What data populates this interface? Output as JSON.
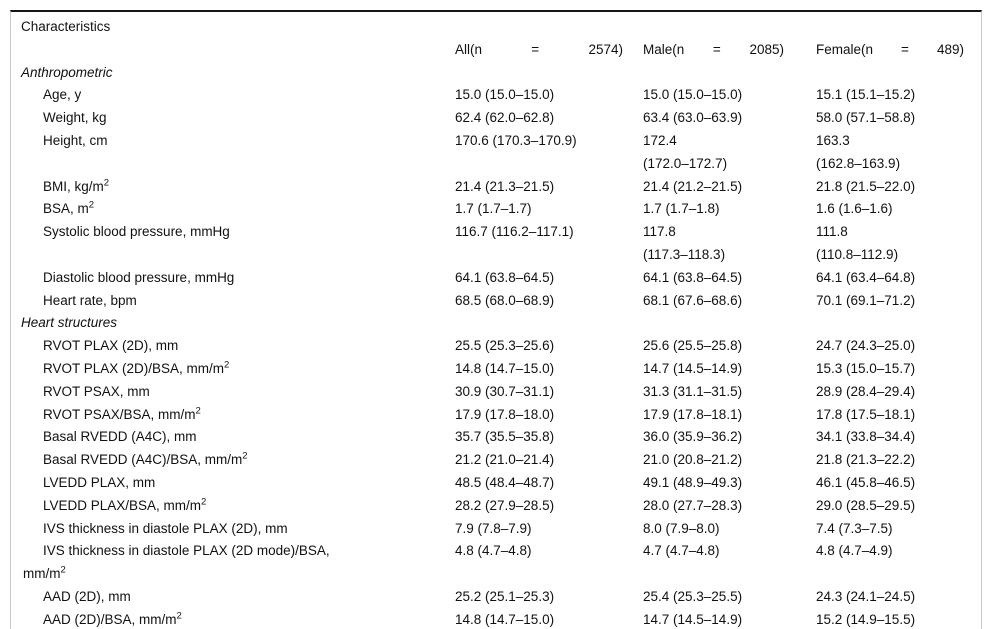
{
  "colors": {
    "background": "#ffffff",
    "rule_dark": "#161616",
    "rule_light": "#c9c9c9",
    "text": "#111111"
  },
  "table": {
    "header": {
      "characteristics": "Characteristics",
      "all": [
        "All(n",
        "=",
        "2574)"
      ],
      "male": [
        "Male(n",
        "=",
        "2085)"
      ],
      "female": [
        "Female(n",
        "=",
        "489)"
      ]
    },
    "sections": [
      {
        "title": "Anthropometric",
        "rows": [
          {
            "label": "Age, y",
            "all": "15.0 (15.0–15.0)",
            "male": "15.0 (15.0–15.0)",
            "female": "15.1 (15.1–15.2)"
          },
          {
            "label": "Weight, kg",
            "all": "62.4 (62.0–62.8)",
            "male": "63.4 (63.0–63.9)",
            "female": "58.0 (57.1–58.8)"
          },
          {
            "label": "Height, cm",
            "all": "170.6 (170.3–170.9)",
            "male": "172.4\n(172.0–172.7)",
            "female": "163.3\n(162.8–163.9)"
          },
          {
            "label": "BMI, kg/m^2",
            "all": "21.4 (21.3–21.5)",
            "male": "21.4 (21.2–21.5)",
            "female": "21.8 (21.5–22.0)"
          },
          {
            "label": "BSA, m^2",
            "all": "1.7 (1.7–1.7)",
            "male": "1.7 (1.7–1.8)",
            "female": "1.6 (1.6–1.6)"
          },
          {
            "label": "Systolic blood pressure, mmHg",
            "all": "116.7 (116.2–117.1)",
            "male": "117.8\n(117.3–118.3)",
            "female": "111.8\n(110.8–112.9)"
          },
          {
            "label": "Diastolic blood pressure, mmHg",
            "all": "64.1 (63.8–64.5)",
            "male": "64.1 (63.8–64.5)",
            "female": "64.1 (63.4–64.8)"
          },
          {
            "label": "Heart rate, bpm",
            "all": "68.5 (68.0–68.9)",
            "male": "68.1 (67.6–68.6)",
            "female": "70.1 (69.1–71.2)"
          }
        ]
      },
      {
        "title": "Heart structures",
        "rows": [
          {
            "label": "RVOT PLAX (2D), mm",
            "all": "25.5 (25.3–25.6)",
            "male": "25.6 (25.5–25.8)",
            "female": "24.7 (24.3–25.0)"
          },
          {
            "label": "RVOT PLAX (2D)/BSA, mm/m^2",
            "all": "14.8 (14.7–15.0)",
            "male": "14.7 (14.5–14.9)",
            "female": "15.3 (15.0–15.7)"
          },
          {
            "label": "RVOT PSAX, mm",
            "all": "30.9 (30.7–31.1)",
            "male": "31.3 (31.1–31.5)",
            "female": "28.9 (28.4–29.4)"
          },
          {
            "label": "RVOT PSAX/BSA, mm/m^2",
            "all": "17.9 (17.8–18.0)",
            "male": "17.9 (17.8–18.1)",
            "female": "17.8 (17.5–18.1)"
          },
          {
            "label": "Basal RVEDD (A4C), mm",
            "all": "35.7 (35.5–35.8)",
            "male": "36.0 (35.9–36.2)",
            "female": "34.1 (33.8–34.4)"
          },
          {
            "label": "Basal RVEDD (A4C)/BSA, mm/m^2",
            "all": "21.2 (21.0–21.4)",
            "male": "21.0 (20.8–21.2)",
            "female": "21.8 (21.3–22.2)"
          },
          {
            "label": "LVEDD PLAX, mm",
            "all": "48.5 (48.4–48.7)",
            "male": "49.1 (48.9–49.3)",
            "female": "46.1 (45.8–46.5)"
          },
          {
            "label": "LVEDD PLAX/BSA, mm/m^2",
            "all": "28.2 (27.9–28.5)",
            "male": "28.0 (27.7–28.3)",
            "female": "29.0 (28.5–29.5)"
          },
          {
            "label": "IVS thickness in diastole PLAX (2D), mm",
            "all": "7.9 (7.8–7.9)",
            "male": "8.0 (7.9–8.0)",
            "female": "7.4 (7.3–7.5)"
          },
          {
            "label": "IVS thickness in diastole PLAX (2D mode)/BSA,\nmm/m^2",
            "all": "4.8 (4.7–4.8)",
            "male": "4.7 (4.7–4.8)",
            "female": "4.8 (4.7–4.9)"
          },
          {
            "label": "AAD (2D), mm",
            "all": "25.2 (25.1–25.3)",
            "male": "25.4 (25.3–25.5)",
            "female": "24.3 (24.1–24.5)"
          },
          {
            "label": "AAD (2D)/BSA, mm/m^2",
            "all": "14.8 (14.7–15.0)",
            "male": "14.7 (14.5–14.9)",
            "female": "15.2 (14.9–15.5)"
          }
        ]
      }
    ]
  }
}
